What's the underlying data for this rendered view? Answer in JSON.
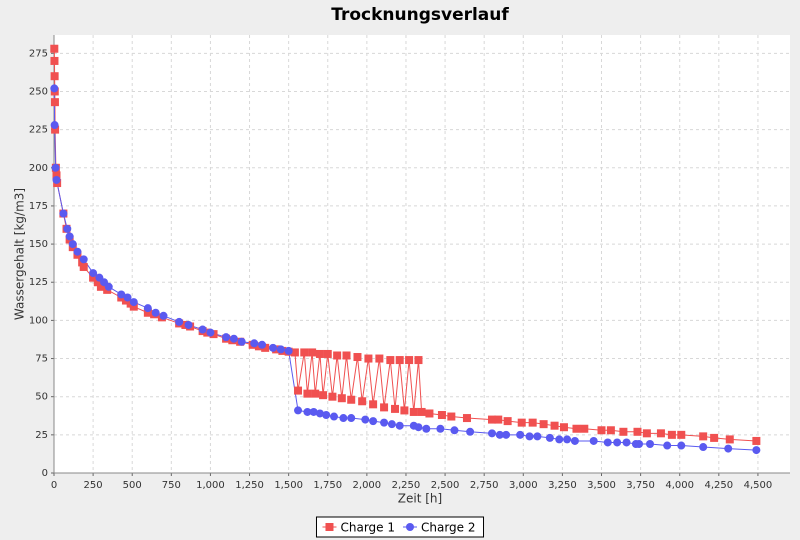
{
  "chart_data": {
    "type": "line",
    "title": "Trocknungsverlauf",
    "x_label": "Zeit  [h]",
    "y_label": "Wassergehalt  [kg/m3]",
    "xlim": [
      0,
      4705
    ],
    "ylim": [
      0,
      287
    ],
    "xticks": [
      0,
      250,
      500,
      750,
      {
        "value": 1000,
        "label": "1,000"
      },
      {
        "value": 1250,
        "label": "1,250"
      },
      {
        "value": 1500,
        "label": "1,500"
      },
      {
        "value": 1750,
        "label": "1,750"
      },
      {
        "value": 2000,
        "label": "2,000"
      },
      {
        "value": 2250,
        "label": "2,250"
      },
      {
        "value": 2500,
        "label": "2,500"
      },
      {
        "value": 2750,
        "label": "2,750"
      },
      {
        "value": 3000,
        "label": "3,000"
      },
      {
        "value": 3250,
        "label": "3,250"
      },
      {
        "value": 3500,
        "label": "3,500"
      },
      {
        "value": 3750,
        "label": "3,750"
      },
      {
        "value": 4000,
        "label": "4,000"
      },
      {
        "value": 4250,
        "label": "4,250"
      },
      {
        "value": 4500,
        "label": "4,500"
      }
    ],
    "yticks": [
      0,
      25,
      50,
      75,
      100,
      125,
      150,
      175,
      200,
      225,
      250,
      275
    ],
    "grid": true,
    "legend": "bottom",
    "series": [
      {
        "name": "Charge 1",
        "color": "#f05050",
        "marker": "square",
        "x": [
          2,
          3,
          4,
          5,
          6,
          7,
          12,
          16,
          20,
          60,
          80,
          100,
          120,
          150,
          180,
          190,
          250,
          280,
          300,
          340,
          430,
          460,
          490,
          510,
          600,
          640,
          690,
          800,
          840,
          870,
          950,
          980,
          1020,
          1100,
          1140,
          1190,
          1270,
          1310,
          1350,
          1420,
          1460,
          1500,
          1540,
          1560,
          1600,
          1620,
          1650,
          1670,
          1700,
          1720,
          1750,
          1780,
          1810,
          1840,
          1870,
          1900,
          1940,
          1970,
          2010,
          2040,
          2080,
          2110,
          2150,
          2180,
          2210,
          2240,
          2270,
          2300,
          2330,
          2350,
          2400,
          2480,
          2540,
          2640,
          2800,
          2840,
          2900,
          2990,
          3060,
          3130,
          3200,
          3260,
          3340,
          3390,
          3500,
          3560,
          3640,
          3730,
          3790,
          3880,
          3950,
          4010,
          4150,
          4220,
          4320,
          4490
        ],
        "values": [
          278,
          270,
          260,
          250,
          243,
          225,
          200,
          195,
          190,
          170,
          160,
          153,
          148,
          143,
          138,
          135,
          128,
          125,
          122,
          120,
          115,
          113,
          111,
          109,
          105,
          104,
          102,
          98,
          97,
          96,
          93,
          92,
          91,
          88,
          87,
          86,
          84,
          83,
          82,
          81,
          80,
          79.5,
          79,
          54,
          79,
          52,
          79,
          52,
          78,
          51,
          78,
          50,
          77,
          49,
          77,
          48,
          76,
          47,
          75,
          45,
          75,
          43,
          74,
          42,
          74,
          41,
          74,
          40,
          74,
          40,
          39,
          38,
          37,
          36,
          35,
          35,
          34,
          33,
          33,
          32,
          31,
          30,
          29,
          29,
          28,
          28,
          27,
          27,
          26,
          26,
          25,
          25,
          24,
          23,
          22,
          21
        ]
      },
      {
        "name": "Charge 2",
        "color": "#5a5af0",
        "marker": "circle",
        "x": [
          2,
          4,
          10,
          16,
          60,
          85,
          100,
          120,
          150,
          190,
          250,
          290,
          320,
          350,
          430,
          470,
          510,
          600,
          650,
          700,
          800,
          860,
          950,
          1000,
          1100,
          1150,
          1200,
          1280,
          1330,
          1400,
          1450,
          1500,
          1560,
          1620,
          1660,
          1700,
          1740,
          1790,
          1850,
          1900,
          1990,
          2040,
          2110,
          2160,
          2210,
          2300,
          2330,
          2380,
          2470,
          2560,
          2660,
          2800,
          2850,
          2890,
          2980,
          3040,
          3090,
          3170,
          3230,
          3280,
          3330,
          3450,
          3540,
          3600,
          3660,
          3720,
          3740,
          3810,
          3920,
          4010,
          4150,
          4310,
          4490
        ],
        "values": [
          252,
          228,
          200,
          192,
          170,
          160,
          155,
          150,
          145,
          140,
          131,
          128,
          125,
          122,
          117,
          115,
          112,
          108,
          105,
          103,
          99,
          97,
          94,
          92,
          89,
          88,
          86,
          85,
          84,
          82,
          81,
          80,
          41,
          40,
          40,
          39,
          38,
          37,
          36,
          36,
          35,
          34,
          33,
          32,
          31,
          31,
          30,
          29,
          29,
          28,
          27,
          26,
          25,
          25,
          25,
          24,
          24,
          23,
          22,
          22,
          21,
          21,
          20,
          20,
          20,
          19,
          19,
          19,
          18,
          18,
          17,
          16,
          15
        ]
      }
    ]
  }
}
